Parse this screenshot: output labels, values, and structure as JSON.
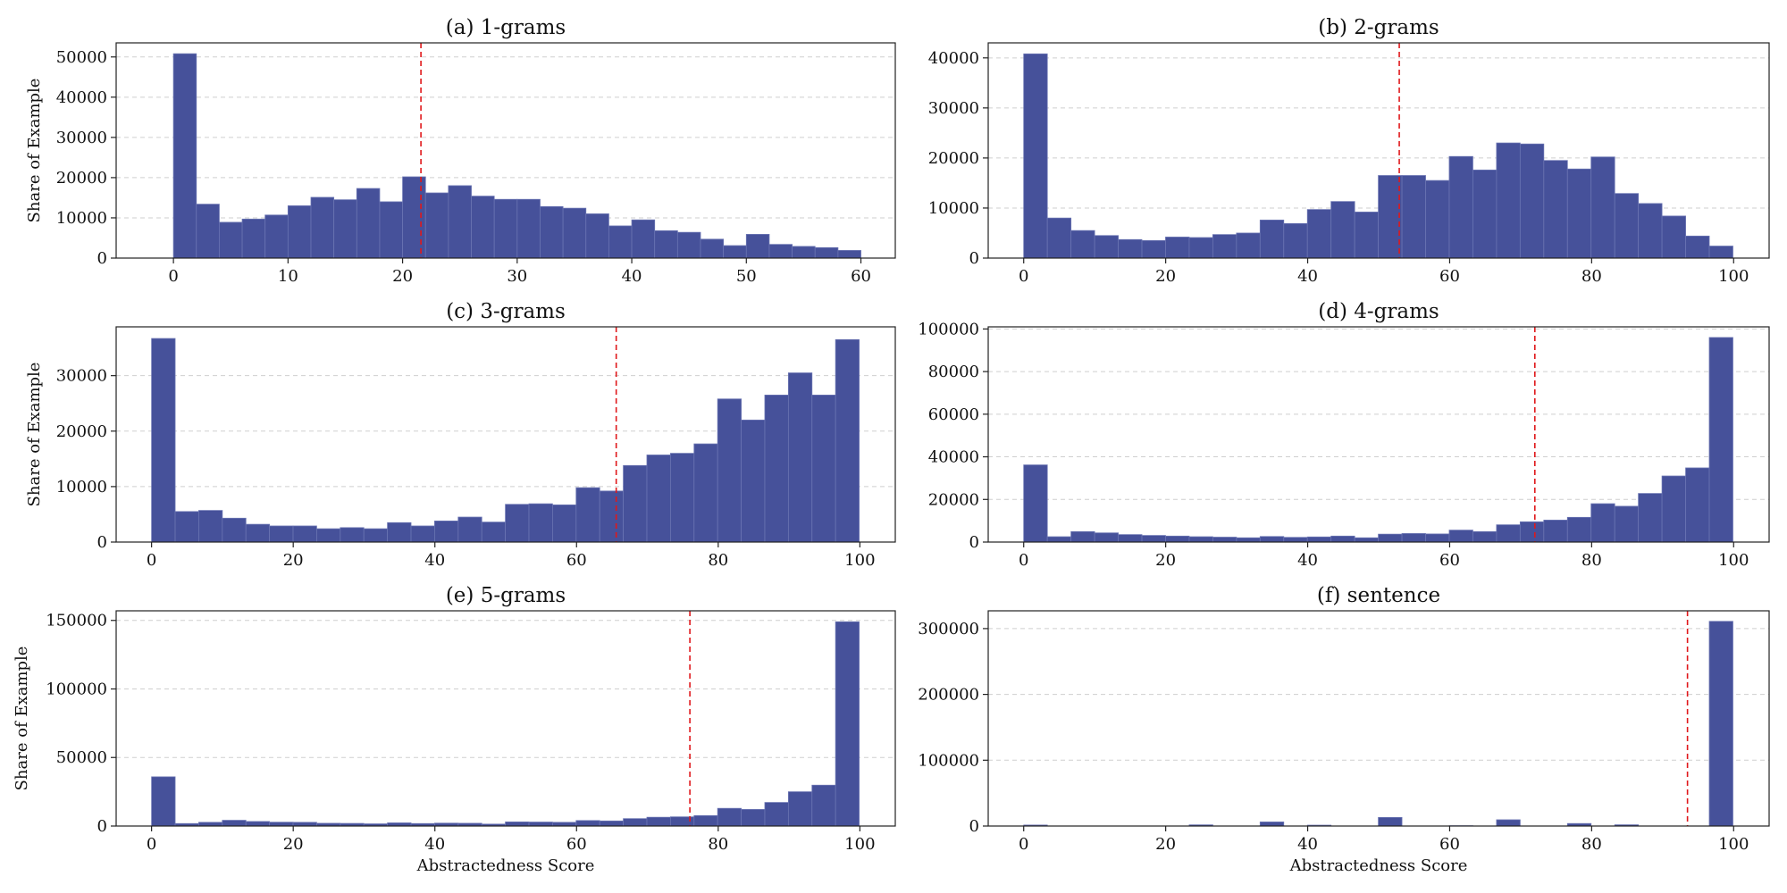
{
  "chart_data": [
    {
      "type": "bar",
      "title": "(a) 1-grams",
      "xlabel": "",
      "ylabel": "Share of Example",
      "xlim": [
        -5,
        63
      ],
      "ylim": [
        0,
        53500
      ],
      "xticks": [
        0,
        10,
        20,
        30,
        40,
        50,
        60
      ],
      "yticks": [
        0,
        10000,
        20000,
        30000,
        40000,
        50000
      ],
      "grid": "y-dashed",
      "bin_start": 0,
      "bin_width": 2,
      "values": [
        50800,
        13400,
        8900,
        9700,
        10700,
        13000,
        15100,
        14500,
        17300,
        14000,
        20200,
        16200,
        18000,
        15400,
        14600,
        14600,
        12800,
        12400,
        11000,
        8000,
        9500,
        6800,
        6400,
        4700,
        3100,
        5900,
        3400,
        2900,
        2600,
        1900
      ],
      "mean_line": 21.6
    },
    {
      "type": "bar",
      "title": "(b) 2-grams",
      "xlabel": "",
      "ylabel": "",
      "xlim": [
        -5,
        105
      ],
      "ylim": [
        0,
        43000
      ],
      "xticks": [
        0,
        20,
        40,
        60,
        80,
        100
      ],
      "yticks": [
        0,
        10000,
        20000,
        30000,
        40000
      ],
      "grid": "y-dashed",
      "bin_start": 0,
      "bin_width": 3.33,
      "values": [
        40800,
        8000,
        5500,
        4500,
        3700,
        3500,
        4200,
        4100,
        4700,
        5000,
        7600,
        6900,
        9700,
        11300,
        9200,
        16500,
        16500,
        15500,
        20300,
        17600,
        23000,
        22800,
        19500,
        17800,
        20200,
        12900,
        10900,
        8400,
        4400,
        2400
      ],
      "mean_line": 52.9
    },
    {
      "type": "bar",
      "title": "(c) 3-grams",
      "xlabel": "",
      "ylabel": "Share of Example",
      "xlim": [
        -5,
        105
      ],
      "ylim": [
        0,
        38800
      ],
      "xticks": [
        0,
        20,
        40,
        60,
        80,
        100
      ],
      "yticks": [
        0,
        10000,
        20000,
        30000
      ],
      "grid": "y-dashed",
      "bin_start": 0,
      "bin_width": 3.33,
      "values": [
        36700,
        5500,
        5700,
        4300,
        3200,
        2900,
        2900,
        2400,
        2600,
        2400,
        3500,
        2900,
        3800,
        4500,
        3600,
        6800,
        6900,
        6700,
        9800,
        9200,
        13800,
        15700,
        16000,
        17700,
        25800,
        22000,
        26500,
        30500,
        26500,
        36500
      ],
      "mean_line": 65.6
    },
    {
      "type": "bar",
      "title": "(d) 4-grams",
      "xlabel": "",
      "ylabel": "",
      "xlim": [
        -5,
        105
      ],
      "ylim": [
        0,
        101000
      ],
      "xticks": [
        0,
        20,
        40,
        60,
        80,
        100
      ],
      "yticks": [
        0,
        20000,
        40000,
        60000,
        80000,
        100000
      ],
      "grid": "y-dashed",
      "bin_start": 0,
      "bin_width": 3.33,
      "values": [
        36200,
        2500,
        4900,
        4300,
        3500,
        3100,
        2800,
        2500,
        2300,
        2000,
        2600,
        2200,
        2400,
        2800,
        2000,
        3700,
        4000,
        3800,
        5600,
        4900,
        8100,
        9500,
        10300,
        11600,
        18000,
        16800,
        22800,
        31000,
        34800,
        96000
      ],
      "mean_line": 72.0
    },
    {
      "type": "bar",
      "title": "(e) 5-grams",
      "xlabel": "Abstractedness Score",
      "ylabel": "Share of Example",
      "xlim": [
        -5,
        105
      ],
      "ylim": [
        0,
        157000
      ],
      "xticks": [
        0,
        20,
        40,
        60,
        80,
        100
      ],
      "yticks": [
        0,
        50000,
        100000,
        150000
      ],
      "grid": "y-dashed",
      "bin_start": 0,
      "bin_width": 3.33,
      "values": [
        35900,
        1800,
        2700,
        4200,
        3300,
        2800,
        2700,
        2000,
        1900,
        1600,
        2300,
        1800,
        2100,
        2000,
        1400,
        3000,
        2900,
        2700,
        4000,
        3700,
        5400,
        6400,
        6700,
        7600,
        12900,
        12100,
        17200,
        25000,
        29800,
        149000
      ],
      "mean_line": 76.0
    },
    {
      "type": "bar",
      "title": "(f) sentence",
      "xlabel": "Abstractedness Score",
      "ylabel": "",
      "xlim": [
        -5,
        105
      ],
      "ylim": [
        0,
        327000
      ],
      "xticks": [
        0,
        20,
        40,
        60,
        80,
        100
      ],
      "yticks": [
        0,
        100000,
        200000,
        300000
      ],
      "grid": "y-dashed",
      "bin_start": 0,
      "bin_width": 3.33,
      "values": [
        1500,
        0,
        0,
        0,
        0,
        0,
        0,
        1800,
        0,
        0,
        6200,
        0,
        1300,
        0,
        0,
        13000,
        0,
        0,
        500,
        0,
        9500,
        0,
        0,
        3800,
        0,
        1900,
        0,
        0,
        0,
        311000
      ],
      "mean_line": 93.5
    }
  ]
}
